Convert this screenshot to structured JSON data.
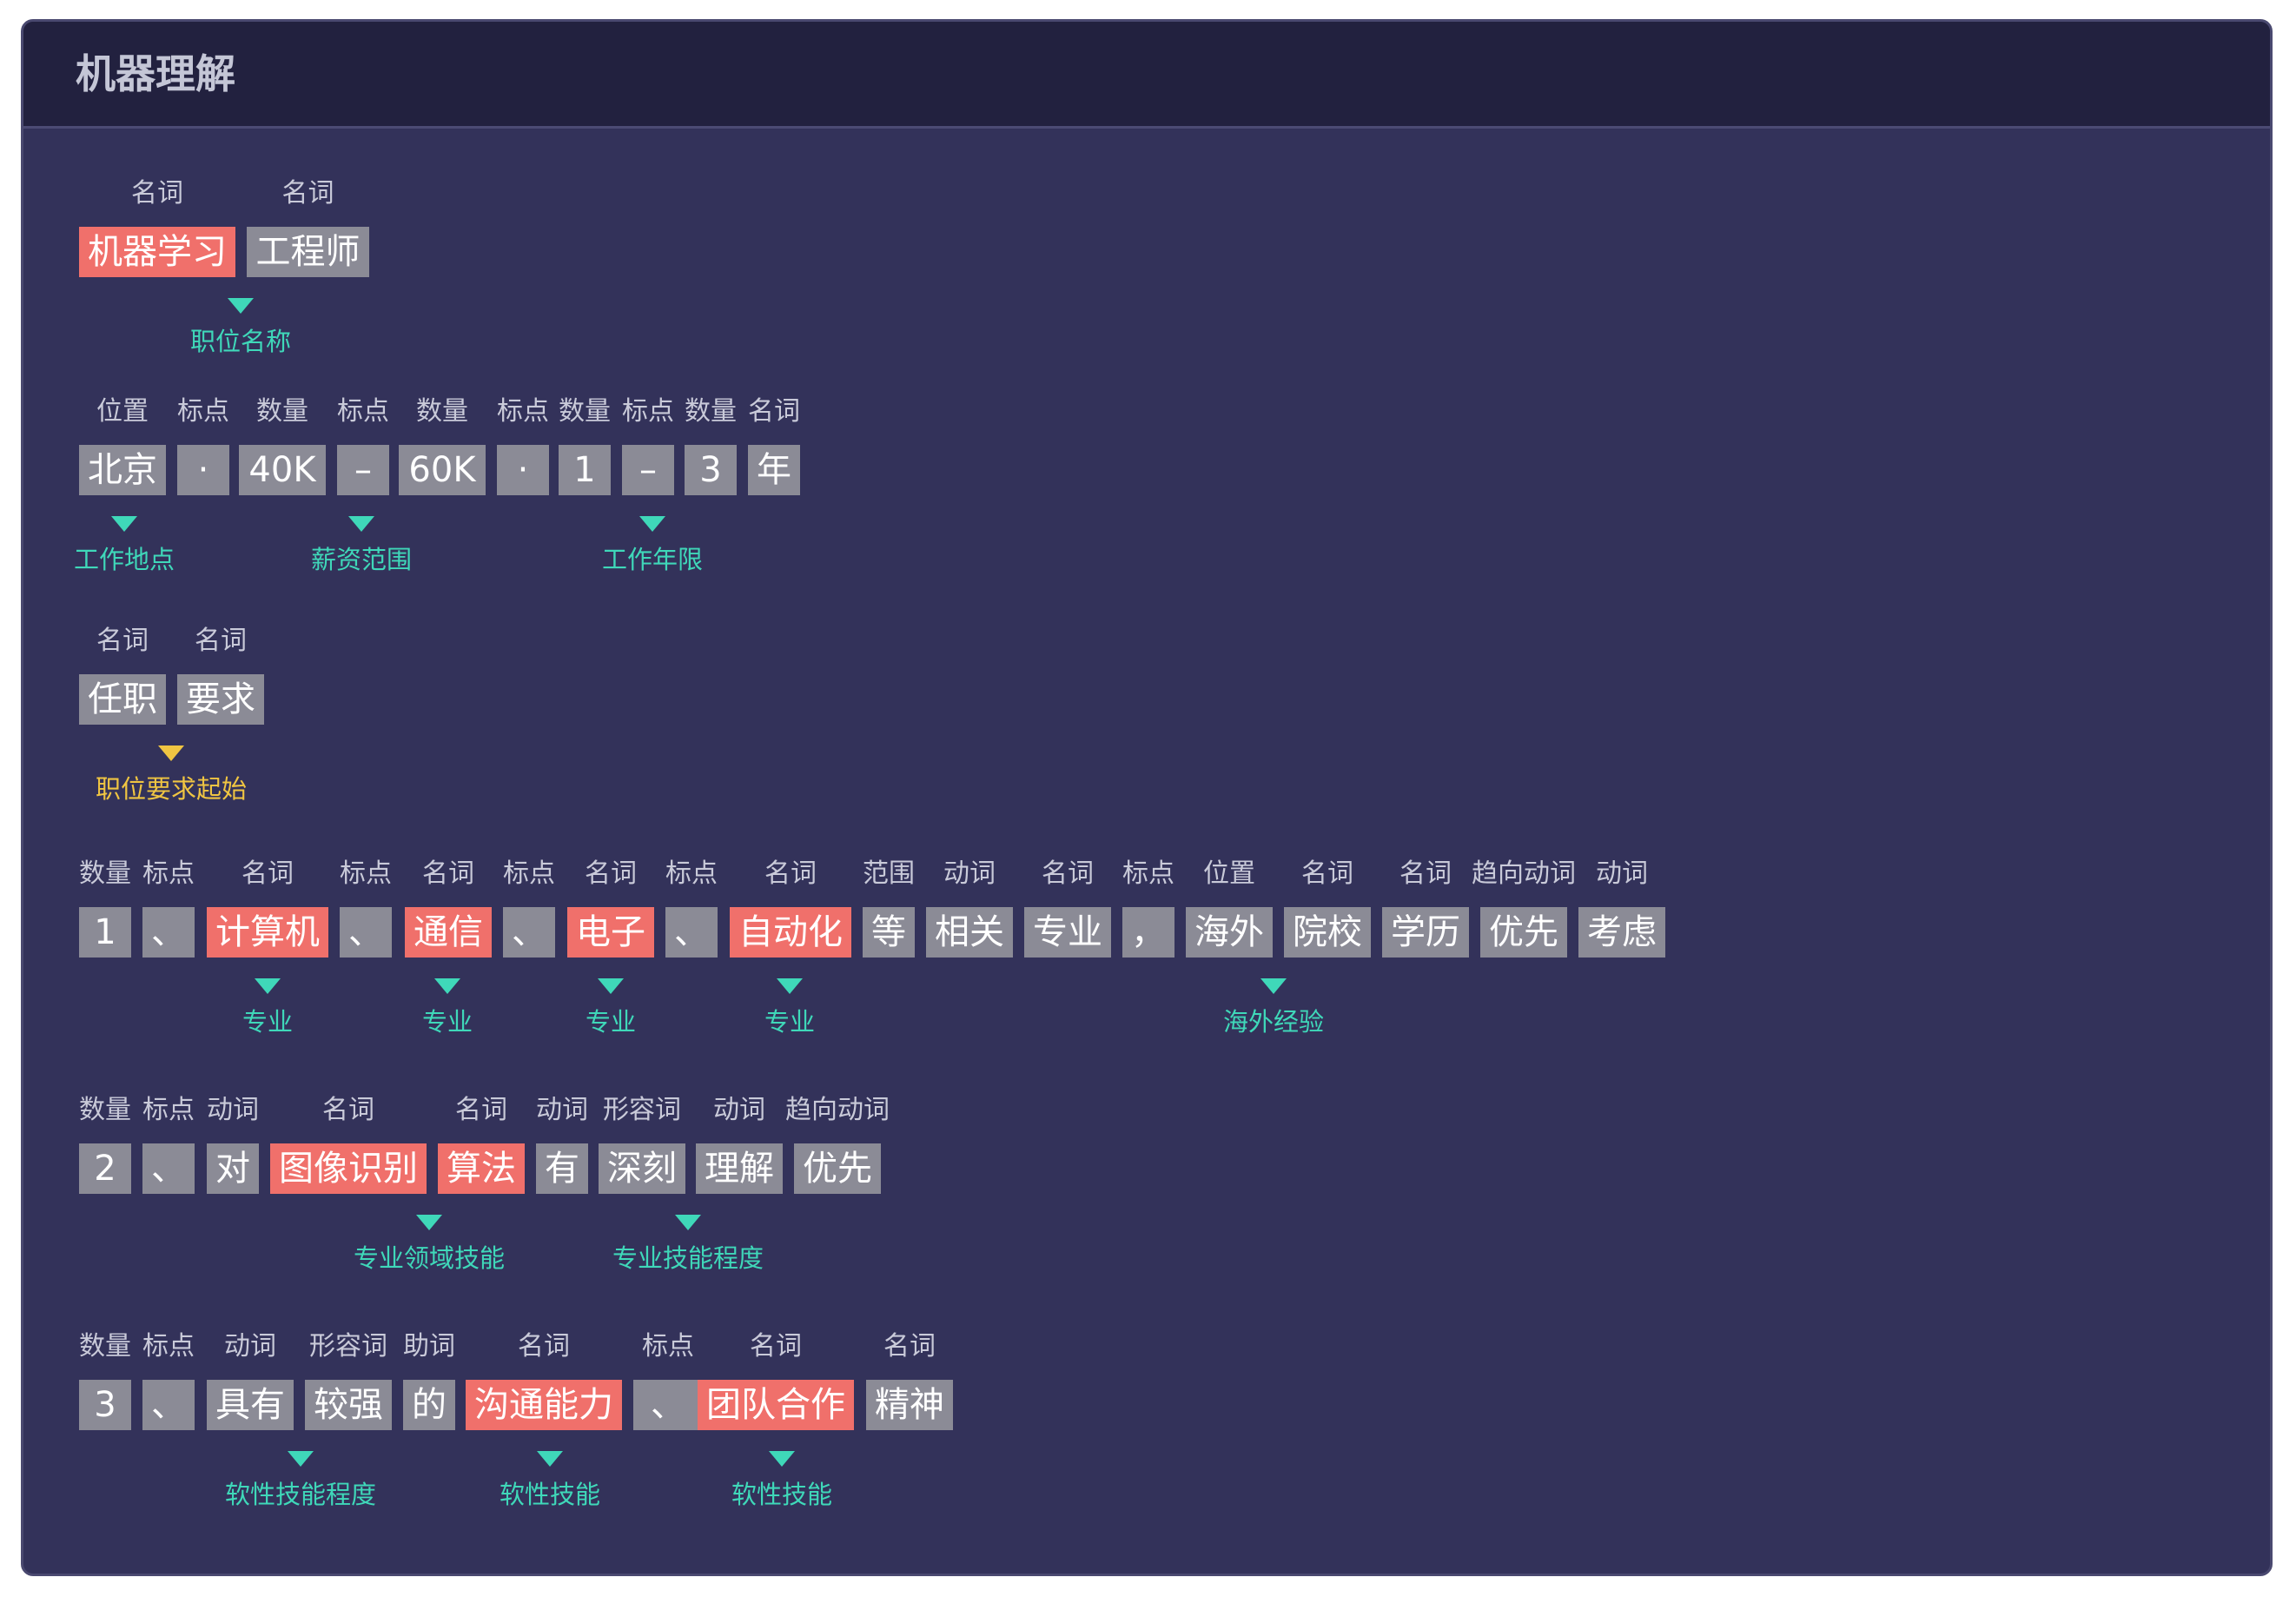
{
  "panel": {
    "title": "机器理解",
    "rows": [
      {
        "tokens": [
          {
            "text": "机器学习",
            "pos": "名词",
            "hl": true
          },
          {
            "text": "工程师",
            "pos": "名词",
            "hl": false
          }
        ],
        "tags": [
          {
            "label": "职位名称",
            "color": "teal"
          }
        ]
      },
      {
        "tokens": [
          {
            "text": "北京",
            "pos": "位置",
            "hl": false
          },
          {
            "text": "·",
            "pos": "标点",
            "hl": false
          },
          {
            "text": "40K",
            "pos": "数量",
            "hl": false
          },
          {
            "text": "–",
            "pos": "标点",
            "hl": false
          },
          {
            "text": "60K",
            "pos": "数量",
            "hl": false
          },
          {
            "text": "·",
            "pos": "标点",
            "hl": false
          },
          {
            "text": "1",
            "pos": "数量",
            "hl": false
          },
          {
            "text": "–",
            "pos": "标点",
            "hl": false
          },
          {
            "text": "3",
            "pos": "数量",
            "hl": false
          },
          {
            "text": "年",
            "pos": "名词",
            "hl": false
          }
        ],
        "tags": [
          {
            "label": "工作地点",
            "color": "teal"
          },
          {
            "label": "薪资范围",
            "color": "teal"
          },
          {
            "label": "工作年限",
            "color": "teal"
          }
        ]
      },
      {
        "tokens": [
          {
            "text": "任职",
            "pos": "名词",
            "hl": false
          },
          {
            "text": "要求",
            "pos": "名词",
            "hl": false
          }
        ],
        "tags": [
          {
            "label": "职位要求起始",
            "color": "gold"
          }
        ]
      },
      {
        "tokens": [
          {
            "text": "1",
            "pos": "数量",
            "hl": false
          },
          {
            "text": "、",
            "pos": "标点",
            "hl": false
          },
          {
            "text": "计算机",
            "pos": "名词",
            "hl": true
          },
          {
            "text": "、",
            "pos": "标点",
            "hl": false
          },
          {
            "text": "通信",
            "pos": "名词",
            "hl": true
          },
          {
            "text": "、",
            "pos": "标点",
            "hl": false
          },
          {
            "text": "电子",
            "pos": "名词",
            "hl": true
          },
          {
            "text": "、",
            "pos": "标点",
            "hl": false
          },
          {
            "text": "自动化",
            "pos": "名词",
            "hl": true
          },
          {
            "text": "等",
            "pos": "范围",
            "hl": false
          },
          {
            "text": "相关",
            "pos": "动词",
            "hl": false
          },
          {
            "text": "专业",
            "pos": "名词",
            "hl": false
          },
          {
            "text": "，",
            "pos": "标点",
            "hl": false
          },
          {
            "text": "海外",
            "pos": "位置",
            "hl": false
          },
          {
            "text": "院校",
            "pos": "名词",
            "hl": false
          },
          {
            "text": "学历",
            "pos": "名词",
            "hl": false
          },
          {
            "text": "优先",
            "pos": "趋向动词",
            "hl": false
          },
          {
            "text": "考虑",
            "pos": "动词",
            "hl": false
          }
        ],
        "tags": [
          {
            "label": "专业",
            "color": "teal"
          },
          {
            "label": "专业",
            "color": "teal"
          },
          {
            "label": "专业",
            "color": "teal"
          },
          {
            "label": "专业",
            "color": "teal"
          },
          {
            "label": "海外经验",
            "color": "teal"
          }
        ]
      },
      {
        "tokens": [
          {
            "text": "2",
            "pos": "数量",
            "hl": false
          },
          {
            "text": "、",
            "pos": "标点",
            "hl": false
          },
          {
            "text": "对",
            "pos": "动词",
            "hl": false
          },
          {
            "text": "图像识别",
            "pos": "名词",
            "hl": true
          },
          {
            "text": "算法",
            "pos": "名词",
            "hl": true
          },
          {
            "text": "有",
            "pos": "动词",
            "hl": false
          },
          {
            "text": "深刻",
            "pos": "形容词",
            "hl": false
          },
          {
            "text": "理解",
            "pos": "动词",
            "hl": false
          },
          {
            "text": "优先",
            "pos": "趋向动词",
            "hl": false
          }
        ],
        "tags": [
          {
            "label": "专业领域技能",
            "color": "teal"
          },
          {
            "label": "专业技能程度",
            "color": "teal"
          }
        ]
      },
      {
        "tokens": [
          {
            "text": "3",
            "pos": "数量",
            "hl": false
          },
          {
            "text": "、",
            "pos": "标点",
            "hl": false
          },
          {
            "text": "具有",
            "pos": "动词",
            "hl": false
          },
          {
            "text": "较强",
            "pos": "形容词",
            "hl": false
          },
          {
            "text": "的",
            "pos": "助词",
            "hl": false
          },
          {
            "text": "沟通能力",
            "pos": "名词",
            "hl": true
          },
          {
            "text": "、",
            "pos": "标点",
            "hl": false
          },
          {
            "text": "团队合作",
            "pos": "名词",
            "hl": true
          },
          {
            "text": "精神",
            "pos": "名词",
            "hl": false
          }
        ],
        "tags": [
          {
            "label": "软性技能程度",
            "color": "teal"
          },
          {
            "label": "软性技能",
            "color": "teal"
          },
          {
            "label": "软性技能",
            "color": "teal"
          }
        ]
      }
    ]
  },
  "colors": {
    "panel_bg": "#33325a",
    "header_bg": "#22213f",
    "token_bg": "#8b8b96",
    "token_highlight": "#f0706b",
    "tag_teal": "#3fd8b9",
    "tag_gold": "#f0c542"
  }
}
